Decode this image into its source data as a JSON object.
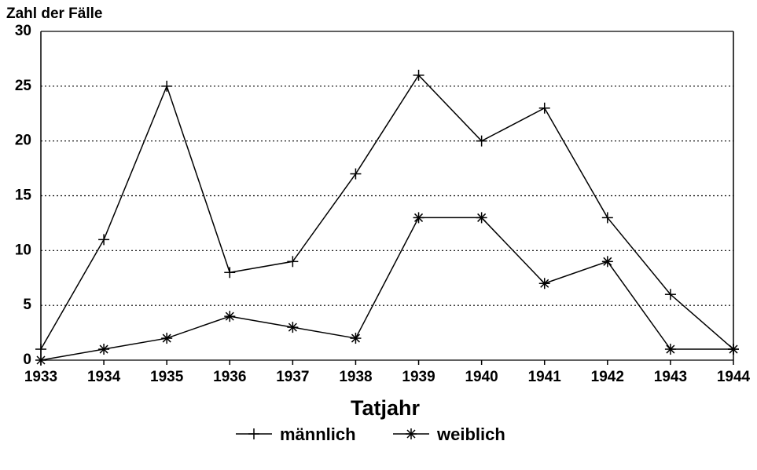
{
  "chart_data": {
    "type": "line",
    "y_label": "Zahl der Fälle",
    "x_label": "Tatjahr",
    "x": [
      1933,
      1934,
      1935,
      1936,
      1937,
      1938,
      1939,
      1940,
      1941,
      1942,
      1943,
      1944
    ],
    "xlim": [
      1933,
      1944
    ],
    "xticks": [
      1933,
      1934,
      1935,
      1936,
      1937,
      1938,
      1939,
      1940,
      1941,
      1942,
      1943,
      1944
    ],
    "ylim": [
      0,
      30
    ],
    "yticks": [
      0,
      5,
      10,
      15,
      20,
      25,
      30
    ],
    "grid": true,
    "legend": "bottom",
    "series": [
      {
        "name": "männlich",
        "color": "#000000",
        "marker": "plus",
        "values": [
          1,
          11,
          25,
          8,
          9,
          17,
          26,
          20,
          23,
          13,
          6,
          1
        ]
      },
      {
        "name": "weiblich",
        "color": "#000000",
        "marker": "asterisk",
        "values": [
          0,
          1,
          2,
          4,
          3,
          2,
          13,
          13,
          7,
          9,
          1,
          1
        ]
      }
    ]
  }
}
